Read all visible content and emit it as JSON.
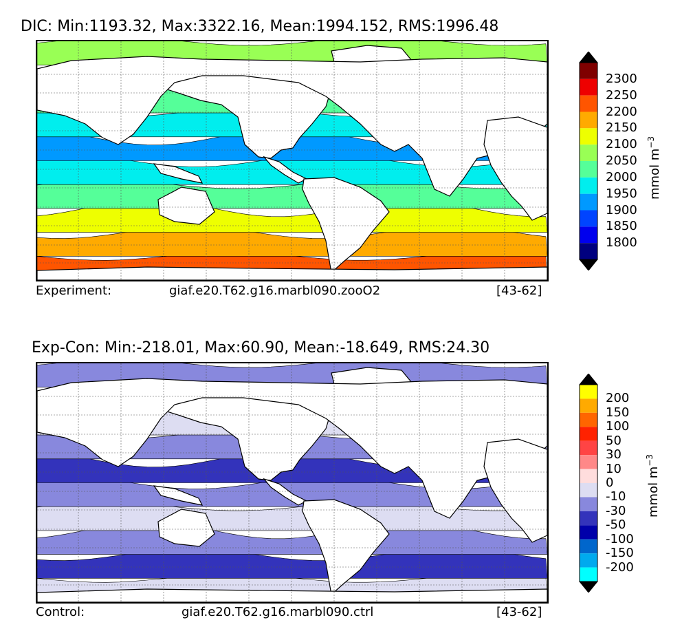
{
  "panels": [
    {
      "title": "DIC: Min:1193.32, Max:3322.16, Mean:1994.152, RMS:1996.48",
      "footer": {
        "label": "Experiment:",
        "case": "giaf.e20.T62.g16.marbl090.zooO2",
        "years": "[43-62]"
      },
      "colorbar": {
        "unit_text": "mmol m",
        "unit_exp": "−3",
        "ticks": [
          "2300",
          "2250",
          "2200",
          "2150",
          "2100",
          "2050",
          "2000",
          "1950",
          "1900",
          "1850",
          "1800"
        ],
        "colors": [
          "#7f0000",
          "#ee0000",
          "#ff5500",
          "#ffaa00",
          "#eeff00",
          "#99ff55",
          "#55ff99",
          "#00eeee",
          "#0099ff",
          "#0044ff",
          "#0000ee",
          "#00007f"
        ],
        "over_color": "#000000",
        "under_color": "#000000"
      },
      "bands": [
        "#ff5500",
        "#ffaa00",
        "#eeff00",
        "#55ff99",
        "#00eeee",
        "#0099ff",
        "#00eeee",
        "#55ff99",
        "#99ff55",
        "#99ff55"
      ]
    },
    {
      "title": "Exp-Con: Min:-218.01, Max:60.90, Mean:-18.649, RMS:24.30",
      "footer": {
        "label": "Control:",
        "case": "giaf.e20.T62.g16.marbl090.ctrl",
        "years": "[43-62]"
      },
      "colorbar": {
        "unit_text": "mmol m",
        "unit_exp": "−3",
        "ticks": [
          "200",
          "150",
          "100",
          "50",
          "30",
          "10",
          "0",
          "-10",
          "-30",
          "-50",
          "-100",
          "-150",
          "-200"
        ],
        "colors": [
          "#ffff00",
          "#ffaa00",
          "#ff6600",
          "#ff2200",
          "#ff4444",
          "#ff8888",
          "#ffdddd",
          "#ddddf2",
          "#8888dd",
          "#3333bb",
          "#0000aa",
          "#0066cc",
          "#00aaee",
          "#00ffff"
        ],
        "over_color": "#000000",
        "under_color": "#000000"
      },
      "bands": [
        "#ddddf2",
        "#3333bb",
        "#8888dd",
        "#ddddf2",
        "#8888dd",
        "#3333bb",
        "#8888dd",
        "#ddddf2",
        "#8888dd",
        "#8888dd"
      ]
    }
  ],
  "map_style": {
    "land_color": "#ffffff",
    "coast_color": "#000000",
    "grid": "dotted"
  }
}
